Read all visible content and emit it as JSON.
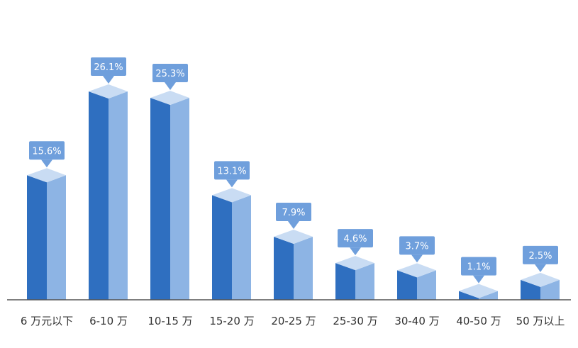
{
  "chart_data": {
    "type": "bar",
    "title": "",
    "xlabel": "",
    "ylabel": "",
    "categories": [
      "6 万元以下",
      "6-10 万",
      "10-15 万",
      "15-20 万",
      "20-25 万",
      "25-30 万",
      "30-40 万",
      "40-50 万",
      "50 万以上"
    ],
    "values": [
      15.6,
      26.1,
      25.3,
      13.1,
      7.9,
      4.6,
      3.7,
      1.1,
      2.5
    ],
    "value_labels": [
      "15.6%",
      "26.1%",
      "25.3%",
      "13.1%",
      "7.9%",
      "4.6%",
      "3.7%",
      "1.1%",
      "2.5%"
    ],
    "unit": "%",
    "ylim": [
      0,
      30
    ],
    "grid": false,
    "legend": "none",
    "style": "3d-column-with-callouts"
  },
  "colors": {
    "bar_front": "#2f6fc0",
    "bar_side": "#8db4e4",
    "bar_top": "#c9dcf3",
    "callout": "#6f9fdc",
    "axis": "#555555"
  }
}
